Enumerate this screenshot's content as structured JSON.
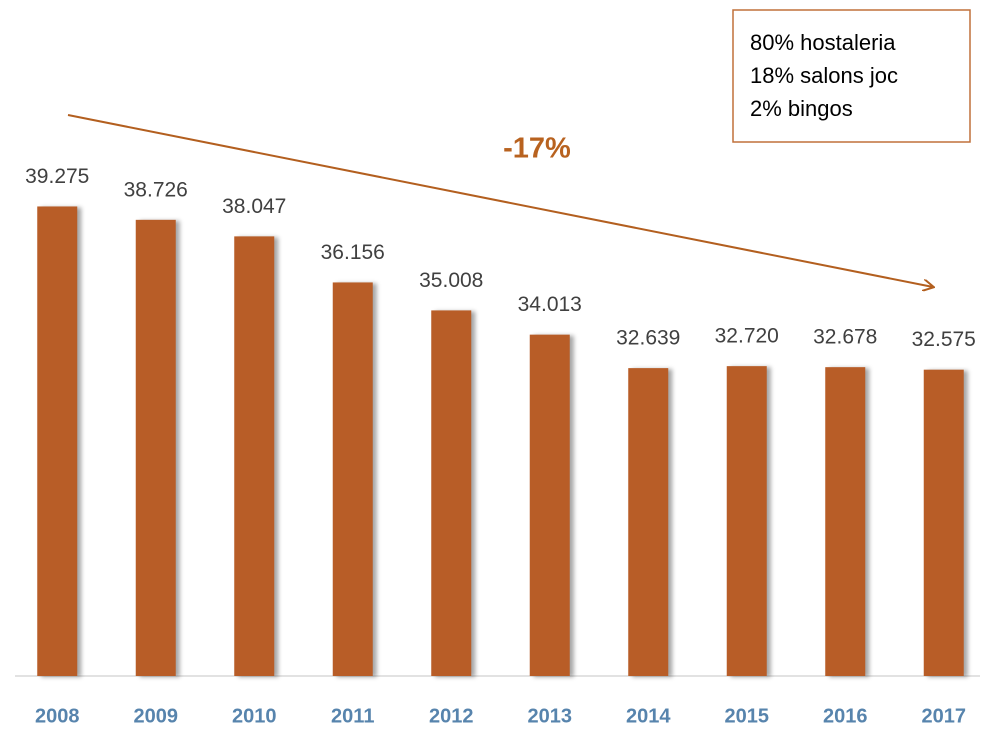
{
  "chart_data": {
    "type": "bar",
    "categories": [
      "2008",
      "2009",
      "2010",
      "2011",
      "2012",
      "2013",
      "2014",
      "2015",
      "2016",
      "2017"
    ],
    "values": [
      39275,
      38726,
      38047,
      36156,
      35008,
      34013,
      32639,
      32720,
      32678,
      32575
    ],
    "value_labels": [
      "39.275",
      "38.726",
      "38.047",
      "36.156",
      "35.008",
      "34.013",
      "32.639",
      "32.720",
      "32.678",
      "32.575"
    ],
    "color": "#b85d27",
    "ylim": [
      20000,
      45000
    ],
    "annotation": "-17%",
    "note": [
      "80% hostaleria",
      "18% salons joc",
      "2% bingos"
    ]
  }
}
